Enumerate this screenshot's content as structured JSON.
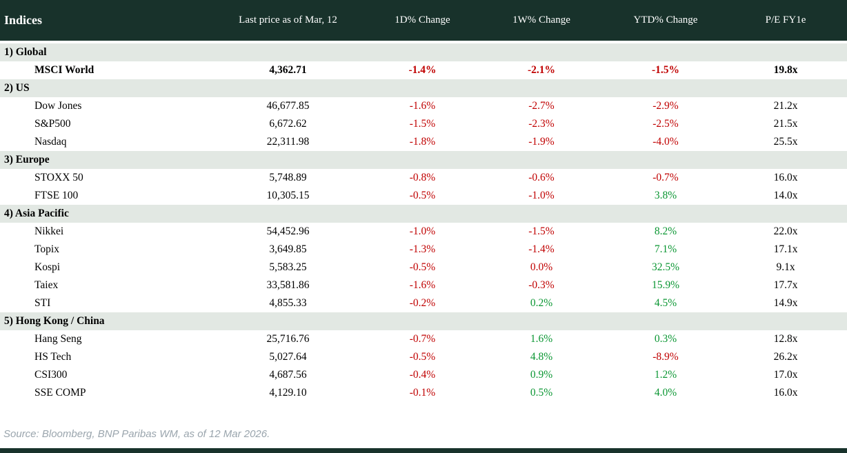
{
  "header": {
    "title": "Indices",
    "columns": [
      "Last price as of Mar, 12",
      "1D% Change",
      "1W% Change",
      "YTD% Change",
      "P/E FY1e"
    ]
  },
  "table": {
    "sections": [
      {
        "label": "1) Global",
        "rows": [
          {
            "name": "MSCI World",
            "price": "4,362.71",
            "changes": [
              "-1.4%",
              "-2.1%",
              "-1.5%"
            ],
            "change_colors": [
              "neg",
              "neg",
              "neg"
            ],
            "pe": "19.8x",
            "bold": true
          }
        ]
      },
      {
        "label": "2) US",
        "rows": [
          {
            "name": "Dow Jones",
            "price": "46,677.85",
            "changes": [
              "-1.6%",
              "-2.7%",
              "-2.9%"
            ],
            "change_colors": [
              "neg",
              "neg",
              "neg"
            ],
            "pe": "21.2x",
            "bold": false
          },
          {
            "name": "S&P500",
            "price": "6,672.62",
            "changes": [
              "-1.5%",
              "-2.3%",
              "-2.5%"
            ],
            "change_colors": [
              "neg",
              "neg",
              "neg"
            ],
            "pe": "21.5x",
            "bold": false
          },
          {
            "name": "Nasdaq",
            "price": "22,311.98",
            "changes": [
              "-1.8%",
              "-1.9%",
              "-4.0%"
            ],
            "change_colors": [
              "neg",
              "neg",
              "neg"
            ],
            "pe": "25.5x",
            "bold": false
          }
        ]
      },
      {
        "label": "3) Europe",
        "rows": [
          {
            "name": "STOXX 50",
            "price": "5,748.89",
            "changes": [
              "-0.8%",
              "-0.6%",
              "-0.7%"
            ],
            "change_colors": [
              "neg",
              "neg",
              "neg"
            ],
            "pe": "16.0x",
            "bold": false
          },
          {
            "name": "FTSE 100",
            "price": "10,305.15",
            "changes": [
              "-0.5%",
              "-1.0%",
              "3.8%"
            ],
            "change_colors": [
              "neg",
              "neg",
              "pos"
            ],
            "pe": "14.0x",
            "bold": false
          }
        ]
      },
      {
        "label": "4) Asia Pacific",
        "rows": [
          {
            "name": "Nikkei",
            "price": "54,452.96",
            "changes": [
              "-1.0%",
              "-1.5%",
              "8.2%"
            ],
            "change_colors": [
              "neg",
              "neg",
              "pos"
            ],
            "pe": "22.0x",
            "bold": false
          },
          {
            "name": "Topix",
            "price": "3,649.85",
            "changes": [
              "-1.3%",
              "-1.4%",
              "7.1%"
            ],
            "change_colors": [
              "neg",
              "neg",
              "pos"
            ],
            "pe": "17.1x",
            "bold": false
          },
          {
            "name": "Kospi",
            "price": "5,583.25",
            "changes": [
              "-0.5%",
              "0.0%",
              "32.5%"
            ],
            "change_colors": [
              "neg",
              "neg",
              "pos"
            ],
            "pe": "9.1x",
            "bold": false
          },
          {
            "name": "Taiex",
            "price": "33,581.86",
            "changes": [
              "-1.6%",
              "-0.3%",
              "15.9%"
            ],
            "change_colors": [
              "neg",
              "neg",
              "pos"
            ],
            "pe": "17.7x",
            "bold": false
          },
          {
            "name": "STI",
            "price": "4,855.33",
            "changes": [
              "-0.2%",
              "0.2%",
              "4.5%"
            ],
            "change_colors": [
              "neg",
              "pos",
              "pos"
            ],
            "pe": "14.9x",
            "bold": false
          }
        ]
      },
      {
        "label": "5) Hong Kong / China",
        "rows": [
          {
            "name": "Hang Seng",
            "price": "25,716.76",
            "changes": [
              "-0.7%",
              "1.6%",
              "0.3%"
            ],
            "change_colors": [
              "neg",
              "pos",
              "pos"
            ],
            "pe": "12.8x",
            "bold": false
          },
          {
            "name": "HS Tech",
            "price": "5,027.64",
            "changes": [
              "-0.5%",
              "4.8%",
              "-8.9%"
            ],
            "change_colors": [
              "neg",
              "pos",
              "neg"
            ],
            "pe": "26.2x",
            "bold": false
          },
          {
            "name": "CSI300",
            "price": "4,687.56",
            "changes": [
              "-0.4%",
              "0.9%",
              "1.2%"
            ],
            "change_colors": [
              "neg",
              "pos",
              "pos"
            ],
            "pe": "17.0x",
            "bold": false
          },
          {
            "name": "SSE COMP",
            "price": "4,129.10",
            "changes": [
              "-0.1%",
              "0.5%",
              "4.0%"
            ],
            "change_colors": [
              "neg",
              "pos",
              "pos"
            ],
            "pe": "16.0x",
            "bold": false
          }
        ]
      }
    ]
  },
  "footer": {
    "source": "Source: Bloomberg, BNP Paribas WM, as of 12 Mar 2026."
  },
  "colors": {
    "header_bg": "#18322b",
    "section_bg": "#e2e8e3",
    "negative": "#c00000",
    "positive": "#0a9632",
    "footer_text": "#9aa5ad"
  },
  "chart_data": {
    "type": "table",
    "title": "Indices",
    "columns": [
      "Indices",
      "Last price as of Mar, 12",
      "1D% Change",
      "1W% Change",
      "YTD% Change",
      "P/E FY1e"
    ],
    "rows": [
      [
        "1) Global",
        "",
        "",
        "",
        "",
        ""
      ],
      [
        "MSCI World",
        "4,362.71",
        "-1.4%",
        "-2.1%",
        "-1.5%",
        "19.8x"
      ],
      [
        "2) US",
        "",
        "",
        "",
        "",
        ""
      ],
      [
        "Dow Jones",
        "46,677.85",
        "-1.6%",
        "-2.7%",
        "-2.9%",
        "21.2x"
      ],
      [
        "S&P500",
        "6,672.62",
        "-1.5%",
        "-2.3%",
        "-2.5%",
        "21.5x"
      ],
      [
        "Nasdaq",
        "22,311.98",
        "-1.8%",
        "-1.9%",
        "-4.0%",
        "25.5x"
      ],
      [
        "3) Europe",
        "",
        "",
        "",
        "",
        ""
      ],
      [
        "STOXX 50",
        "5,748.89",
        "-0.8%",
        "-0.6%",
        "-0.7%",
        "16.0x"
      ],
      [
        "FTSE 100",
        "10,305.15",
        "-0.5%",
        "-1.0%",
        "3.8%",
        "14.0x"
      ],
      [
        "4) Asia Pacific",
        "",
        "",
        "",
        "",
        ""
      ],
      [
        "Nikkei",
        "54,452.96",
        "-1.0%",
        "-1.5%",
        "8.2%",
        "22.0x"
      ],
      [
        "Topix",
        "3,649.85",
        "-1.3%",
        "-1.4%",
        "7.1%",
        "17.1x"
      ],
      [
        "Kospi",
        "5,583.25",
        "-0.5%",
        "0.0%",
        "32.5%",
        "9.1x"
      ],
      [
        "Taiex",
        "33,581.86",
        "-1.6%",
        "-0.3%",
        "15.9%",
        "17.7x"
      ],
      [
        "STI",
        "4,855.33",
        "-0.2%",
        "0.2%",
        "4.5%",
        "14.9x"
      ],
      [
        "5) Hong Kong / China",
        "",
        "",
        "",
        "",
        ""
      ],
      [
        "Hang Seng",
        "25,716.76",
        "-0.7%",
        "1.6%",
        "0.3%",
        "12.8x"
      ],
      [
        "HS Tech",
        "5,027.64",
        "-0.5%",
        "4.8%",
        "-8.9%",
        "26.2x"
      ],
      [
        "CSI300",
        "4,687.56",
        "-0.4%",
        "0.9%",
        "1.2%",
        "17.0x"
      ],
      [
        "SSE COMP",
        "4,129.10",
        "-0.1%",
        "0.5%",
        "4.0%",
        "16.0x"
      ]
    ]
  }
}
